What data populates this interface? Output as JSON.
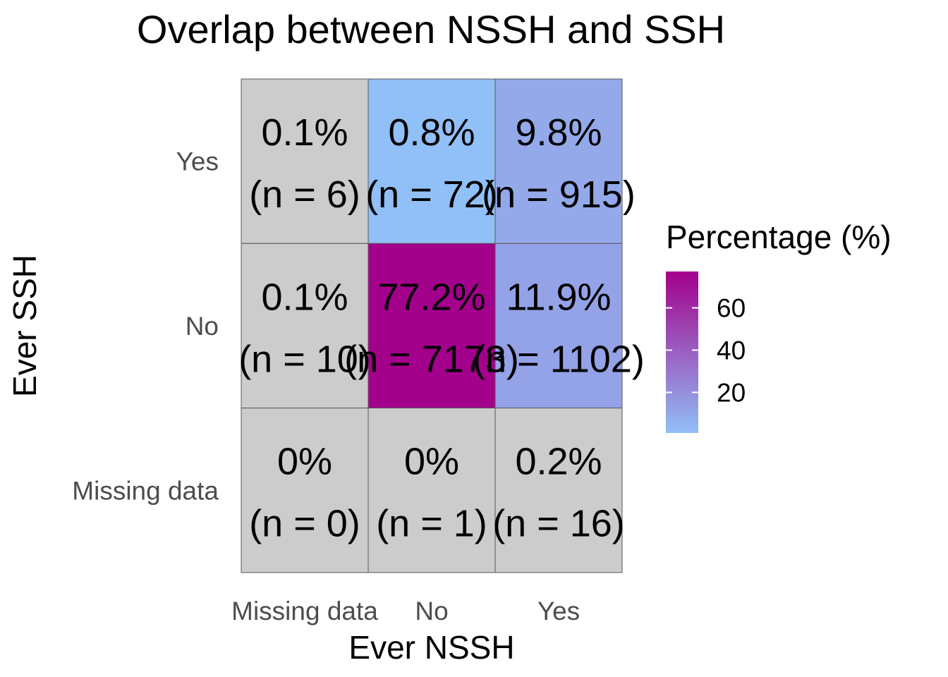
{
  "chart_data": {
    "type": "heatmap",
    "title": "Overlap between NSSH and SSH",
    "xlabel": "Ever NSSH",
    "ylabel": "Ever SSH",
    "x_categories": [
      "Missing data",
      "No",
      "Yes"
    ],
    "y_categories": [
      "Missing data",
      "No",
      "Yes"
    ],
    "cells": [
      {
        "x": "Missing data",
        "y": "Yes",
        "percent": 0.1,
        "n": 6,
        "percent_label": "0.1%",
        "n_label": "(n = 6)"
      },
      {
        "x": "No",
        "y": "Yes",
        "percent": 0.8,
        "n": 72,
        "percent_label": "0.8%",
        "n_label": "(n = 72)"
      },
      {
        "x": "Yes",
        "y": "Yes",
        "percent": 9.8,
        "n": 915,
        "percent_label": "9.8%",
        "n_label": "(n = 915)"
      },
      {
        "x": "Missing data",
        "y": "No",
        "percent": 0.1,
        "n": 10,
        "percent_label": "0.1%",
        "n_label": "(n = 10)"
      },
      {
        "x": "No",
        "y": "No",
        "percent": 77.2,
        "n": 7173,
        "percent_label": "77.2%",
        "n_label": "(n = 7173)"
      },
      {
        "x": "Yes",
        "y": "No",
        "percent": 11.9,
        "n": 1102,
        "percent_label": "11.9%",
        "n_label": "(n = 1102)"
      },
      {
        "x": "Missing data",
        "y": "Missing data",
        "percent": 0,
        "n": 0,
        "percent_label": "0%",
        "n_label": "(n = 0)"
      },
      {
        "x": "No",
        "y": "Missing data",
        "percent": 0,
        "n": 1,
        "percent_label": "0%",
        "n_label": "(n = 1)"
      },
      {
        "x": "Yes",
        "y": "Missing data",
        "percent": 0.2,
        "n": 16,
        "percent_label": "0.2%",
        "n_label": "(n = 16)"
      }
    ],
    "colors": {
      "low": "#91bff7",
      "high": "#a3008c",
      "na": "#cccccc",
      "grid": "#595959"
    },
    "na_rule": "cells with x or y = 'Missing data' are drawn in the NA grey",
    "legend": {
      "title": "Percentage (%)",
      "placement": "right",
      "ticks": [
        20,
        40,
        60
      ],
      "range": [
        0.8,
        77.2
      ]
    }
  }
}
